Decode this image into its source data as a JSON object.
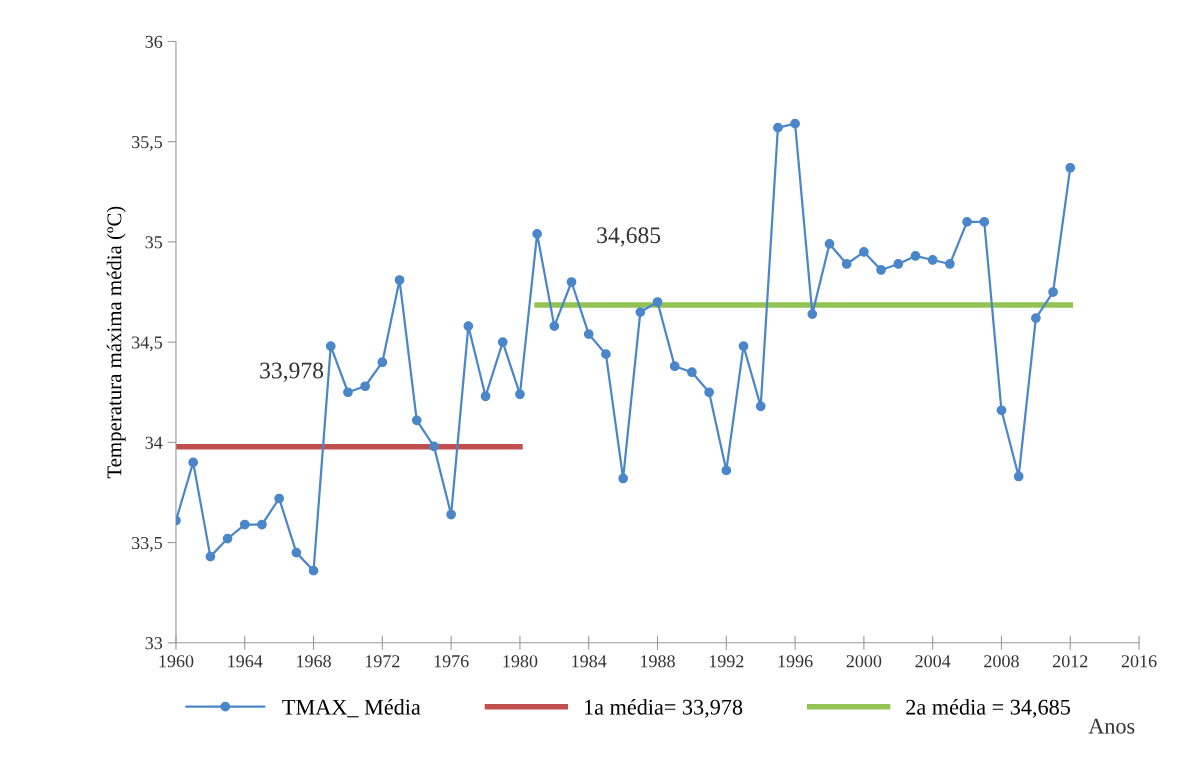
{
  "chart_data": {
    "type": "line",
    "ylabel": "Temperatura máxima média (ºC)",
    "xlabel": "Anos",
    "xlim": [
      1960,
      2016
    ],
    "xticks": [
      1960,
      1964,
      1968,
      1972,
      1976,
      1980,
      1984,
      1988,
      1992,
      1996,
      2000,
      2004,
      2008,
      2012,
      2016
    ],
    "ylim": [
      33,
      36
    ],
    "yticks": [
      33,
      {
        "value": 33.5,
        "label": "33,5"
      },
      34,
      {
        "value": 34.5,
        "label": "34,5"
      },
      35,
      {
        "value": 35.5,
        "label": "35,5"
      },
      36
    ],
    "grid": false,
    "legend": "bottom",
    "annotations": [
      "33,978",
      "34,685"
    ],
    "series": [
      {
        "name": "TMAX_ Média",
        "color": "#4a86c8",
        "marker": "circle",
        "x": [
          1960,
          1961,
          1962,
          1963,
          1964,
          1965,
          1966,
          1967,
          1968,
          1969,
          1970,
          1971,
          1972,
          1973,
          1974,
          1975,
          1976,
          1977,
          1978,
          1979,
          1980,
          1981,
          1982,
          1983,
          1984,
          1985,
          1986,
          1987,
          1988,
          1989,
          1990,
          1991,
          1992,
          1993,
          1994,
          1995,
          1996,
          1997,
          1998,
          1999,
          2000,
          2001,
          2002,
          2003,
          2004,
          2005,
          2006,
          2007,
          2008,
          2009,
          2010,
          2011,
          2012
        ],
        "values": [
          33.61,
          33.9,
          33.43,
          33.52,
          33.59,
          33.59,
          33.72,
          33.45,
          33.36,
          34.48,
          34.25,
          34.28,
          34.4,
          34.81,
          34.11,
          33.98,
          33.64,
          34.58,
          34.23,
          34.5,
          34.24,
          35.04,
          34.58,
          34.8,
          34.54,
          34.44,
          33.82,
          34.65,
          34.7,
          34.38,
          34.35,
          34.25,
          33.86,
          34.48,
          34.18,
          35.57,
          35.59,
          34.64,
          34.99,
          34.89,
          34.95,
          34.86,
          34.89,
          34.93,
          34.91,
          34.89,
          35.1,
          35.1,
          34.16,
          33.83,
          34.62,
          34.75,
          35.37
        ]
      },
      {
        "name": "1a média= 33,978",
        "color": "#c0504d",
        "marker": "none",
        "x": [
          1960,
          1980
        ],
        "values": [
          33.978,
          33.978
        ]
      },
      {
        "name": "2a média = 34,685",
        "color": "#92c353",
        "marker": "none",
        "x": [
          1981,
          2012
        ],
        "values": [
          34.685,
          34.685
        ]
      }
    ]
  }
}
